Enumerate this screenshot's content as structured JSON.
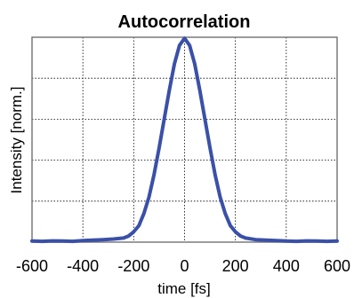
{
  "chart_data": {
    "type": "line",
    "title": "Autocorrelation",
    "xlabel": "time [fs]",
    "ylabel": "Intensity [norm.]",
    "xlim": [
      -600,
      600
    ],
    "ylim": [
      0,
      1
    ],
    "x_ticks": [
      -600,
      -400,
      -200,
      0,
      200,
      400,
      600
    ],
    "x_tick_labels": [
      "-600",
      "-400",
      "-200",
      "0",
      "200",
      "400",
      "600"
    ],
    "y_ticks": [
      0,
      0.2,
      0.4,
      0.6,
      0.8,
      1.0
    ],
    "y_tick_labels_shown": false,
    "grid": true,
    "grid_style": "dotted",
    "series": [
      {
        "color": "#3a50a8",
        "x": [
          -600,
          -560,
          -520,
          -480,
          -440,
          -400,
          -360,
          -320,
          -280,
          -240,
          -220,
          -200,
          -180,
          -160,
          -140,
          -120,
          -100,
          -80,
          -60,
          -40,
          -20,
          0,
          20,
          40,
          60,
          80,
          100,
          120,
          140,
          160,
          180,
          200,
          220,
          240,
          280,
          320,
          360,
          400,
          440,
          480,
          520,
          560,
          600
        ],
        "y": [
          0.005,
          0.004,
          0.006,
          0.005,
          0.004,
          0.008,
          0.01,
          0.012,
          0.015,
          0.02,
          0.03,
          0.05,
          0.08,
          0.14,
          0.22,
          0.33,
          0.46,
          0.6,
          0.74,
          0.87,
          0.96,
          0.995,
          0.96,
          0.87,
          0.74,
          0.6,
          0.46,
          0.33,
          0.22,
          0.14,
          0.08,
          0.05,
          0.03,
          0.02,
          0.012,
          0.01,
          0.008,
          0.005,
          0.004,
          0.006,
          0.005,
          0.004,
          0.005
        ]
      }
    ]
  }
}
